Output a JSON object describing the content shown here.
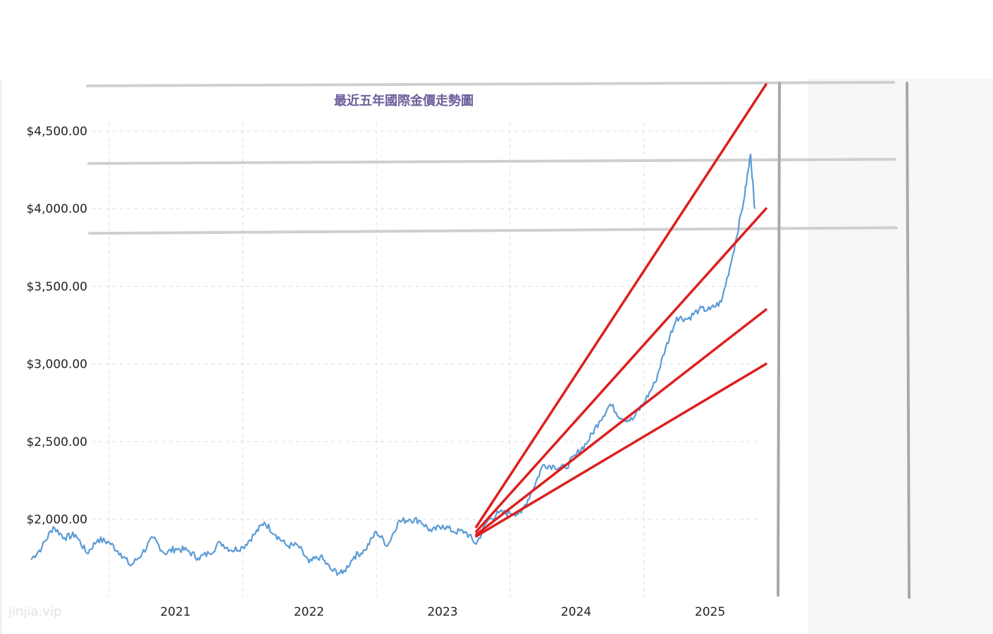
{
  "watermark": "jinjia.vip",
  "colors": {
    "series": "#5b9bd5",
    "trendline": "#dd1f1f",
    "level_line": "#cfcfcf",
    "divider": "#a9a9a9",
    "grid": "#dddddd",
    "title": "#6d5f9c",
    "right_panel": "#f6f7f9"
  },
  "chart_data": {
    "type": "line",
    "title": "最近五年國際金價走勢圖",
    "xlabel": "",
    "ylabel": "",
    "ylim": [
      1580,
      4800
    ],
    "xlim": [
      "2020-06-01",
      "2025-10-31"
    ],
    "grid": true,
    "y_ticks": [
      {
        "value": 2000,
        "label": "$2,000.00"
      },
      {
        "value": 2500,
        "label": "$2,500.00"
      },
      {
        "value": 3000,
        "label": "$3,000.00"
      },
      {
        "value": 3500,
        "label": "$3,500.00"
      },
      {
        "value": 4000,
        "label": "$4,000.00"
      },
      {
        "value": 4500,
        "label": "$4,500.00"
      }
    ],
    "x_ticks": [
      {
        "value": "2021-01-01",
        "label": "2021"
      },
      {
        "value": "2022-01-01",
        "label": "2022"
      },
      {
        "value": "2023-01-01",
        "label": "2023"
      },
      {
        "value": "2024-01-01",
        "label": "2024"
      },
      {
        "value": "2025-01-01",
        "label": "2025"
      }
    ],
    "series": [
      {
        "points": [
          [
            "2020-06-01",
            1740
          ],
          [
            "2020-07-01",
            1820
          ],
          [
            "2020-08-01",
            1950
          ],
          [
            "2020-09-01",
            1880
          ],
          [
            "2020-10-01",
            1900
          ],
          [
            "2020-11-01",
            1780
          ],
          [
            "2020-12-01",
            1870
          ],
          [
            "2021-01-01",
            1850
          ],
          [
            "2021-02-01",
            1780
          ],
          [
            "2021-03-01",
            1700
          ],
          [
            "2021-04-01",
            1780
          ],
          [
            "2021-05-01",
            1880
          ],
          [
            "2021-06-01",
            1780
          ],
          [
            "2021-07-01",
            1810
          ],
          [
            "2021-08-01",
            1800
          ],
          [
            "2021-09-01",
            1750
          ],
          [
            "2021-10-01",
            1780
          ],
          [
            "2021-11-01",
            1850
          ],
          [
            "2021-12-01",
            1800
          ],
          [
            "2022-01-01",
            1820
          ],
          [
            "2022-02-01",
            1900
          ],
          [
            "2022-03-01",
            1980
          ],
          [
            "2022-04-01",
            1900
          ],
          [
            "2022-05-01",
            1830
          ],
          [
            "2022-06-01",
            1830
          ],
          [
            "2022-07-01",
            1720
          ],
          [
            "2022-08-01",
            1760
          ],
          [
            "2022-09-01",
            1670
          ],
          [
            "2022-10-01",
            1650
          ],
          [
            "2022-11-01",
            1760
          ],
          [
            "2022-12-01",
            1800
          ],
          [
            "2023-01-01",
            1920
          ],
          [
            "2023-02-01",
            1830
          ],
          [
            "2023-03-01",
            1980
          ],
          [
            "2023-04-01",
            2000
          ],
          [
            "2023-05-01",
            1990
          ],
          [
            "2023-06-01",
            1920
          ],
          [
            "2023-07-01",
            1960
          ],
          [
            "2023-08-01",
            1920
          ],
          [
            "2023-09-01",
            1920
          ],
          [
            "2023-10-01",
            1840
          ],
          [
            "2023-11-01",
            1990
          ],
          [
            "2023-12-01",
            2040
          ],
          [
            "2024-01-01",
            2040
          ],
          [
            "2024-02-01",
            2040
          ],
          [
            "2024-03-01",
            2180
          ],
          [
            "2024-04-01",
            2350
          ],
          [
            "2024-05-01",
            2340
          ],
          [
            "2024-06-01",
            2330
          ],
          [
            "2024-07-01",
            2420
          ],
          [
            "2024-08-01",
            2500
          ],
          [
            "2024-09-01",
            2630
          ],
          [
            "2024-10-01",
            2740
          ],
          [
            "2024-11-01",
            2650
          ],
          [
            "2024-12-01",
            2640
          ],
          [
            "2025-01-01",
            2750
          ],
          [
            "2025-02-01",
            2880
          ],
          [
            "2025-03-01",
            3100
          ],
          [
            "2025-04-01",
            3300
          ],
          [
            "2025-05-01",
            3290
          ],
          [
            "2025-06-01",
            3350
          ],
          [
            "2025-07-01",
            3350
          ],
          [
            "2025-08-01",
            3400
          ],
          [
            "2025-09-01",
            3700
          ],
          [
            "2025-10-01",
            4050
          ],
          [
            "2025-10-20",
            4350
          ],
          [
            "2025-10-31",
            4000
          ]
        ]
      }
    ],
    "trend_lines": [
      {
        "from": [
          "2023-10-01",
          1950
        ],
        "to": [
          "2025-12-01",
          4800
        ]
      },
      {
        "from": [
          "2023-10-01",
          1920
        ],
        "to": [
          "2025-12-01",
          4000
        ]
      },
      {
        "from": [
          "2023-10-01",
          1900
        ],
        "to": [
          "2025-12-01",
          3350
        ]
      },
      {
        "from": [
          "2023-10-01",
          1890
        ],
        "to": [
          "2025-12-01",
          3000
        ]
      }
    ],
    "level_lines": [
      4800,
      4300,
      3850
    ]
  }
}
